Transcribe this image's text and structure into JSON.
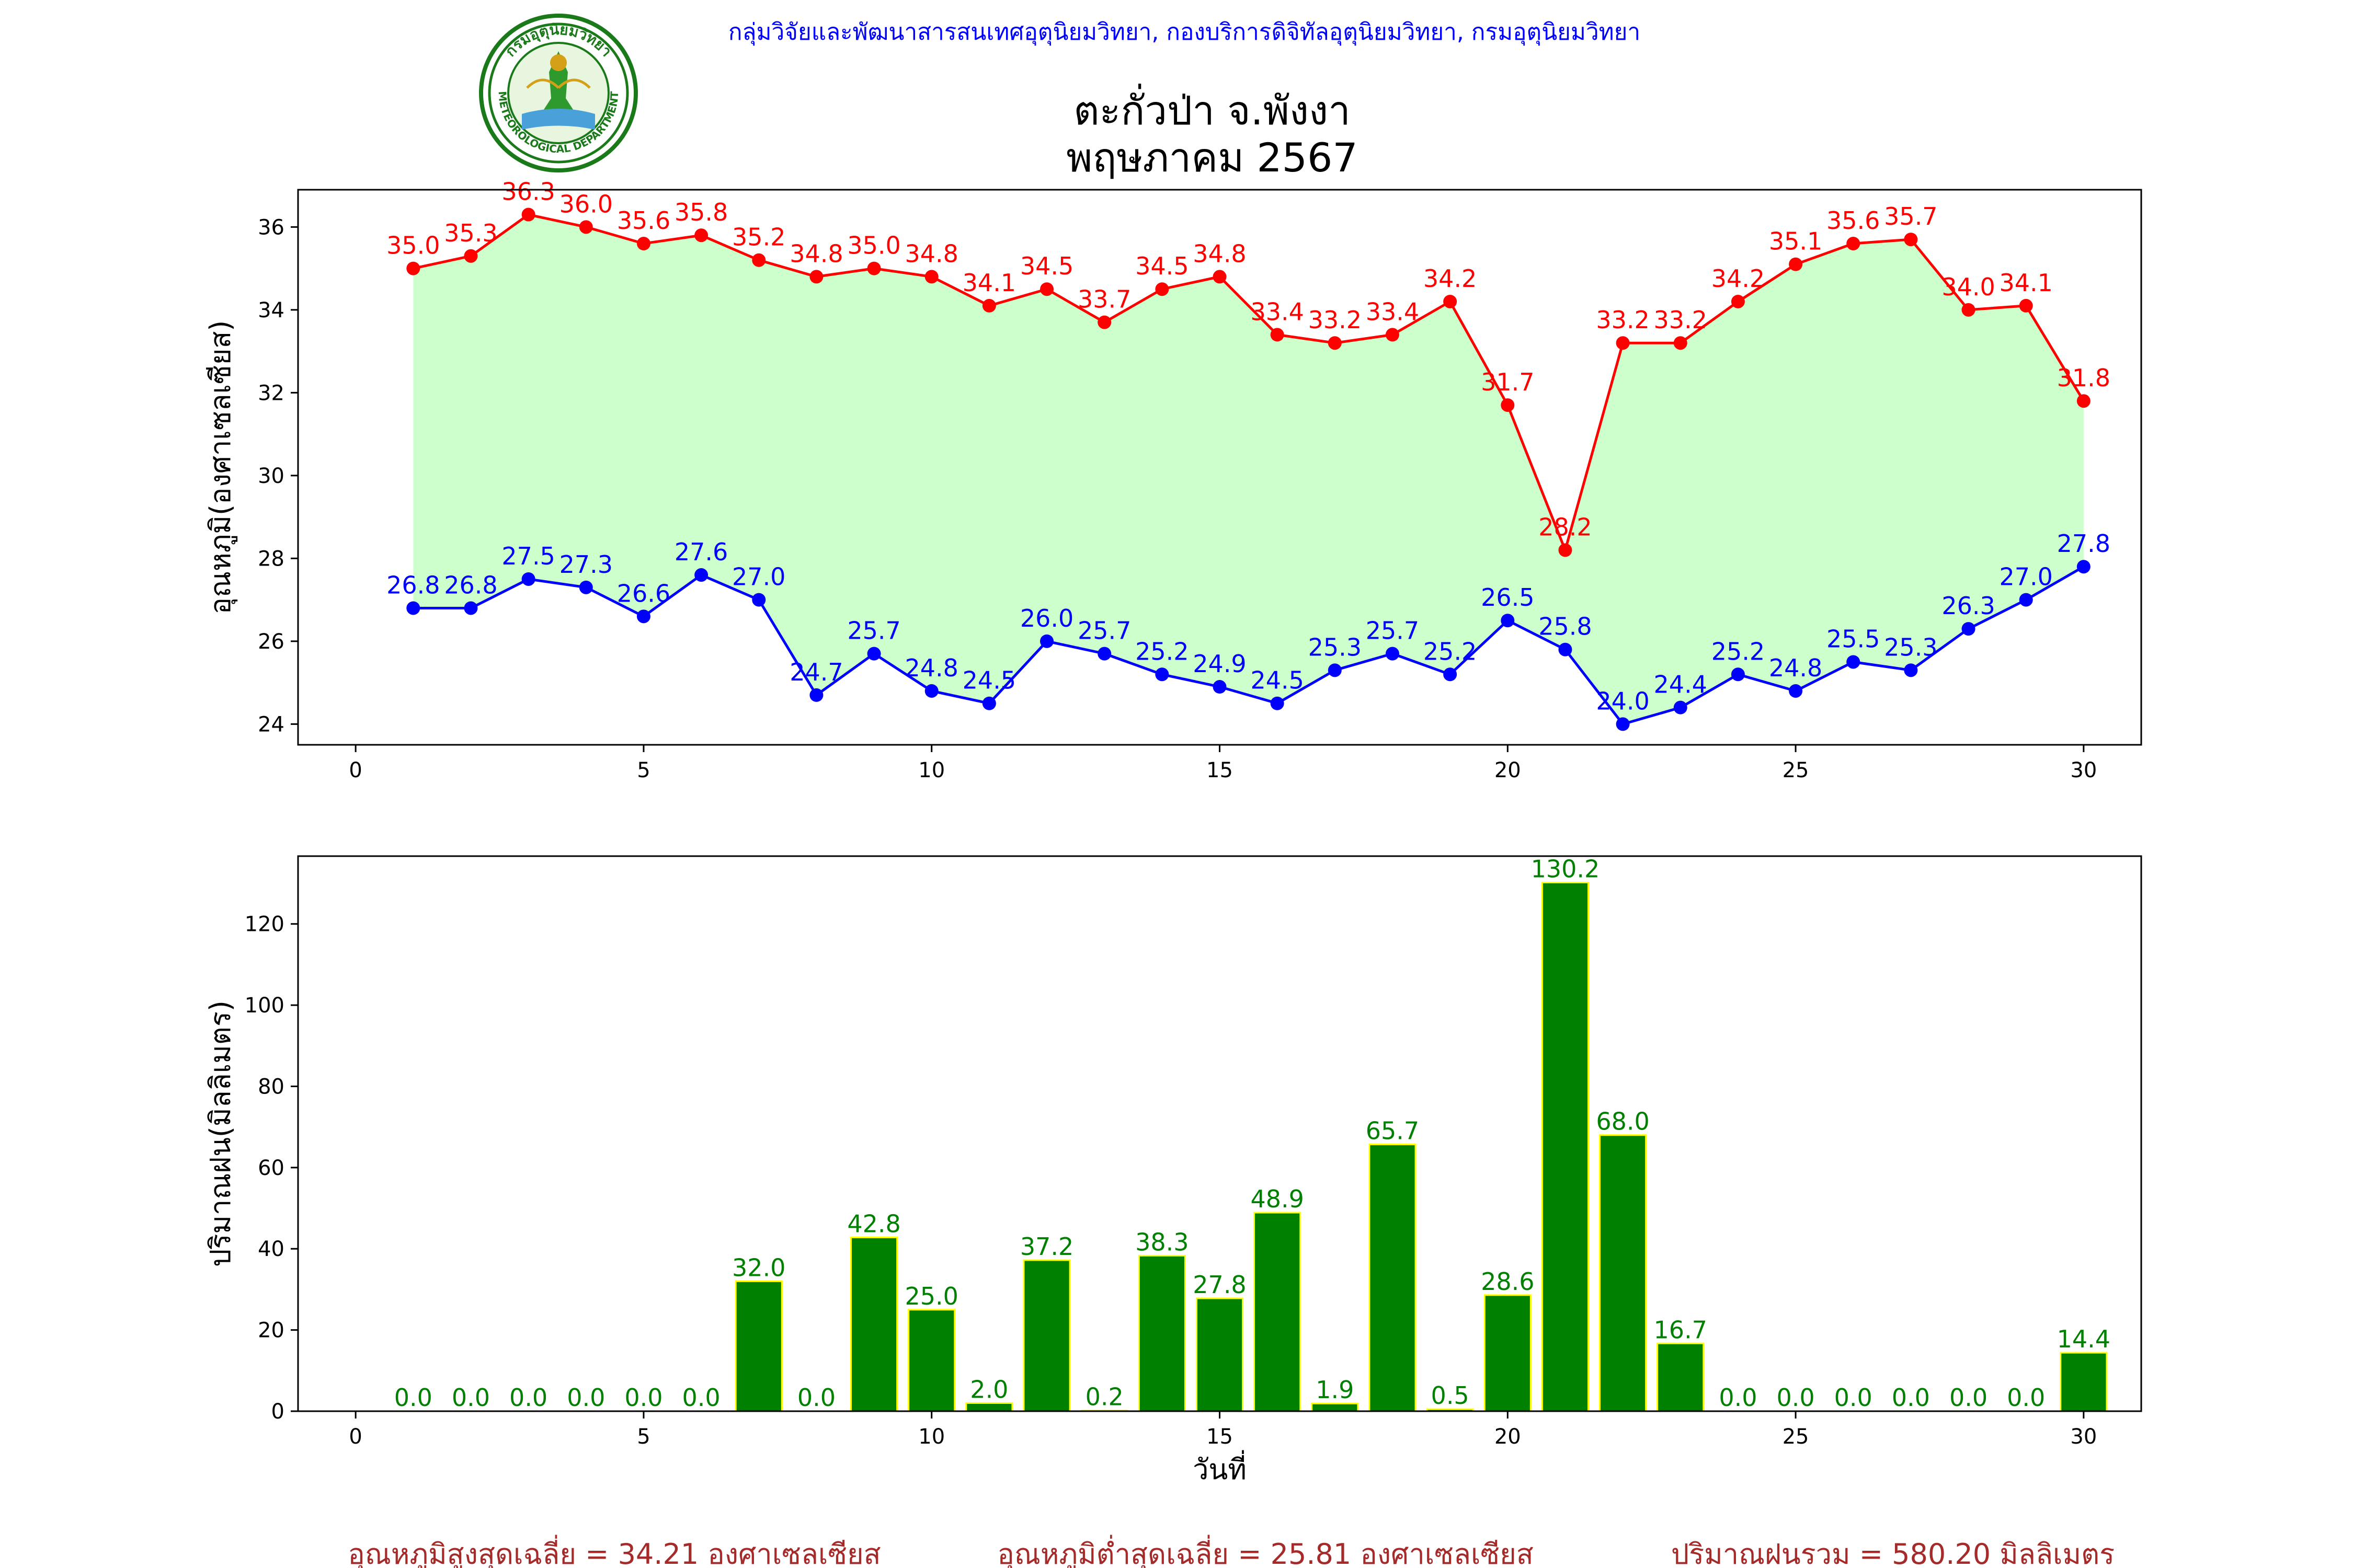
{
  "header": {
    "org_line": "กลุ่มวิจัยและพัฒนาสารสนเทศอุตุนิยมวิทยา, กองบริการดิจิทัลอุตุนิยมวิทยา, กรมอุตุนิยมวิทยา",
    "logo_text_top": "กรมอุตุนิยมวิทยา",
    "logo_text_bottom": "METEOROLOGICAL DEPARTMENT",
    "title_line1": "ตะกั่วป่า จ.พังงา",
    "title_line2": "พฤษภาคม 2567"
  },
  "colors": {
    "org_text": "#0000ff",
    "max_line": "#ff0000",
    "min_line": "#0000ff",
    "fill": "#ccffcc",
    "bar_fill": "#008000",
    "bar_edge": "#ffff00",
    "bar_label": "#008000",
    "footer_text": "#a52a2a"
  },
  "chart_data": [
    {
      "type": "line",
      "ylabel": "อุณหภูมิ(องศาเซลเซียส)",
      "xlabel": "",
      "xlim": [
        -1,
        31
      ],
      "ylim": [
        23.5,
        36.9
      ],
      "xticks": [
        0,
        5,
        10,
        15,
        20,
        25,
        30
      ],
      "yticks": [
        24,
        26,
        28,
        30,
        32,
        34,
        36
      ],
      "grid": false,
      "fill_between": true,
      "x": [
        1,
        2,
        3,
        4,
        5,
        6,
        7,
        8,
        9,
        10,
        11,
        12,
        13,
        14,
        15,
        16,
        17,
        18,
        19,
        20,
        21,
        22,
        23,
        24,
        25,
        26,
        27,
        28,
        29,
        30
      ],
      "series": [
        {
          "key": "max",
          "values": [
            35.0,
            35.3,
            36.3,
            36.0,
            35.6,
            35.8,
            35.2,
            34.8,
            35.0,
            34.8,
            34.1,
            34.5,
            33.7,
            34.5,
            34.8,
            33.4,
            33.2,
            33.4,
            34.2,
            31.7,
            28.2,
            33.2,
            33.2,
            34.2,
            35.1,
            35.6,
            35.7,
            34.0,
            34.1,
            31.8
          ]
        },
        {
          "key": "min",
          "values": [
            26.8,
            26.8,
            27.5,
            27.3,
            26.6,
            27.6,
            27.0,
            24.7,
            25.7,
            24.8,
            24.5,
            26.0,
            25.7,
            25.2,
            24.9,
            24.5,
            25.3,
            25.7,
            25.2,
            26.5,
            25.8,
            24.0,
            24.4,
            25.2,
            24.8,
            25.5,
            25.3,
            26.3,
            27.0,
            27.8
          ]
        }
      ]
    },
    {
      "type": "bar",
      "ylabel": "ปริมาณฝน(มิลลิเมตร)",
      "xlabel": "วันที่",
      "xlim": [
        -1,
        31
      ],
      "ylim": [
        0,
        136.7
      ],
      "xticks": [
        0,
        5,
        10,
        15,
        20,
        25,
        30
      ],
      "yticks": [
        0,
        20,
        40,
        60,
        80,
        100,
        120
      ],
      "grid": false,
      "x": [
        1,
        2,
        3,
        4,
        5,
        6,
        7,
        8,
        9,
        10,
        11,
        12,
        13,
        14,
        15,
        16,
        17,
        18,
        19,
        20,
        21,
        22,
        23,
        24,
        25,
        26,
        27,
        28,
        29,
        30
      ],
      "values": [
        0.0,
        0.0,
        0.0,
        0.0,
        0.0,
        0.0,
        32.0,
        0.0,
        42.8,
        25.0,
        2.0,
        37.2,
        0.2,
        38.3,
        27.8,
        48.9,
        1.9,
        65.7,
        0.5,
        28.6,
        130.2,
        68.0,
        16.7,
        0.0,
        0.0,
        0.0,
        0.0,
        0.0,
        0.0,
        14.4
      ]
    }
  ],
  "footer": {
    "avg_max": "อุณหภูมิสูงสุดเฉลี่ย = 34.21 องศาเซลเซียส",
    "avg_min": "อุณหภูมิต่ำสุดเฉลี่ย = 25.81 องศาเซลเซียส",
    "total_rain": "ปริมาณฝนรวม = 580.20 มิลลิเมตร"
  }
}
